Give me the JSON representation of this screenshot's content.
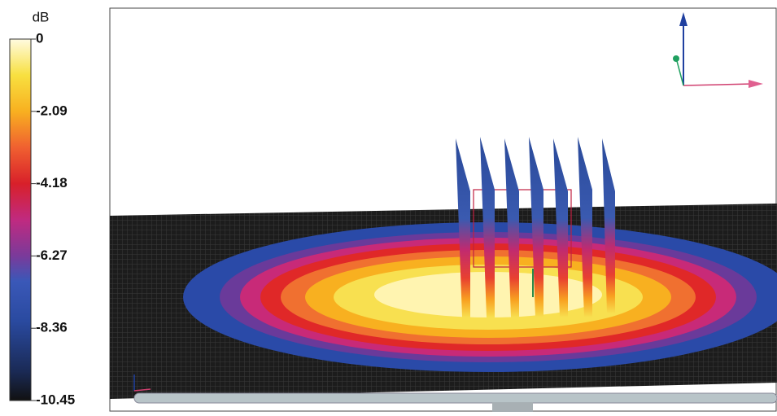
{
  "colorbar": {
    "unit": "dB",
    "ticks": [
      0,
      -2.09,
      -4.18,
      -6.27,
      -8.36,
      -10.45
    ]
  }
}
